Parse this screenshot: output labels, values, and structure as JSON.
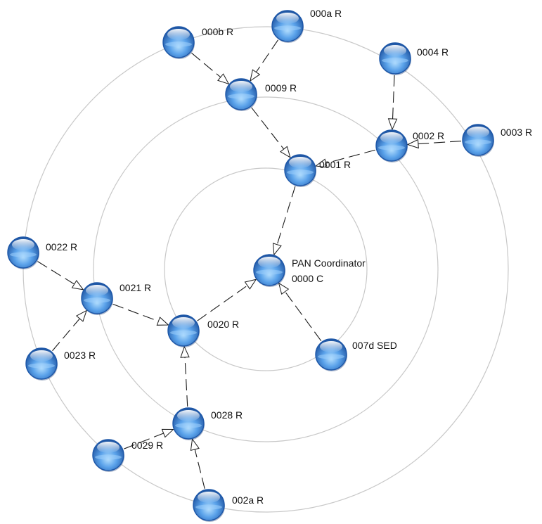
{
  "colors": {
    "ring": "#c8c8c8",
    "link": "#1a1a1a",
    "node_dark": "#1d57a8",
    "node_mid": "#3f86d9",
    "node_light": "#9fd0fb",
    "label": "#111111"
  },
  "node_icon": "blue-sphere-icon",
  "nodes": [
    {
      "id": "0000",
      "labels": [
        "PAN Coordinator",
        "0000 C"
      ]
    },
    {
      "id": "0001",
      "labels": [
        "0001 R"
      ]
    },
    {
      "id": "0002",
      "labels": [
        "0002 R"
      ]
    },
    {
      "id": "0003",
      "labels": [
        "0003 R"
      ]
    },
    {
      "id": "0004",
      "labels": [
        "0004 R"
      ]
    },
    {
      "id": "0009",
      "labels": [
        "0009 R"
      ]
    },
    {
      "id": "000a",
      "labels": [
        "000a R"
      ]
    },
    {
      "id": "000b",
      "labels": [
        "000b R"
      ]
    },
    {
      "id": "0020",
      "labels": [
        "0020 R"
      ]
    },
    {
      "id": "0021",
      "labels": [
        "0021 R"
      ]
    },
    {
      "id": "0022",
      "labels": [
        "0022 R"
      ]
    },
    {
      "id": "0023",
      "labels": [
        "0023 R"
      ]
    },
    {
      "id": "0028",
      "labels": [
        "0028 R"
      ]
    },
    {
      "id": "0029",
      "labels": [
        "0029 R"
      ]
    },
    {
      "id": "002a",
      "labels": [
        "002a R"
      ]
    },
    {
      "id": "007d",
      "labels": [
        "007d SED"
      ]
    }
  ],
  "links": [
    {
      "from": "000b",
      "to": "0009"
    },
    {
      "from": "000a",
      "to": "0009"
    },
    {
      "from": "0009",
      "to": "0001"
    },
    {
      "from": "0004",
      "to": "0002"
    },
    {
      "from": "0003",
      "to": "0002"
    },
    {
      "from": "0002",
      "to": "0001"
    },
    {
      "from": "0001",
      "to": "0000"
    },
    {
      "from": "007d",
      "to": "0000"
    },
    {
      "from": "0020",
      "to": "0000"
    },
    {
      "from": "0022",
      "to": "0021"
    },
    {
      "from": "0023",
      "to": "0021"
    },
    {
      "from": "0021",
      "to": "0020"
    },
    {
      "from": "0028",
      "to": "0020"
    },
    {
      "from": "0029",
      "to": "0028"
    },
    {
      "from": "002a",
      "to": "0028"
    }
  ]
}
